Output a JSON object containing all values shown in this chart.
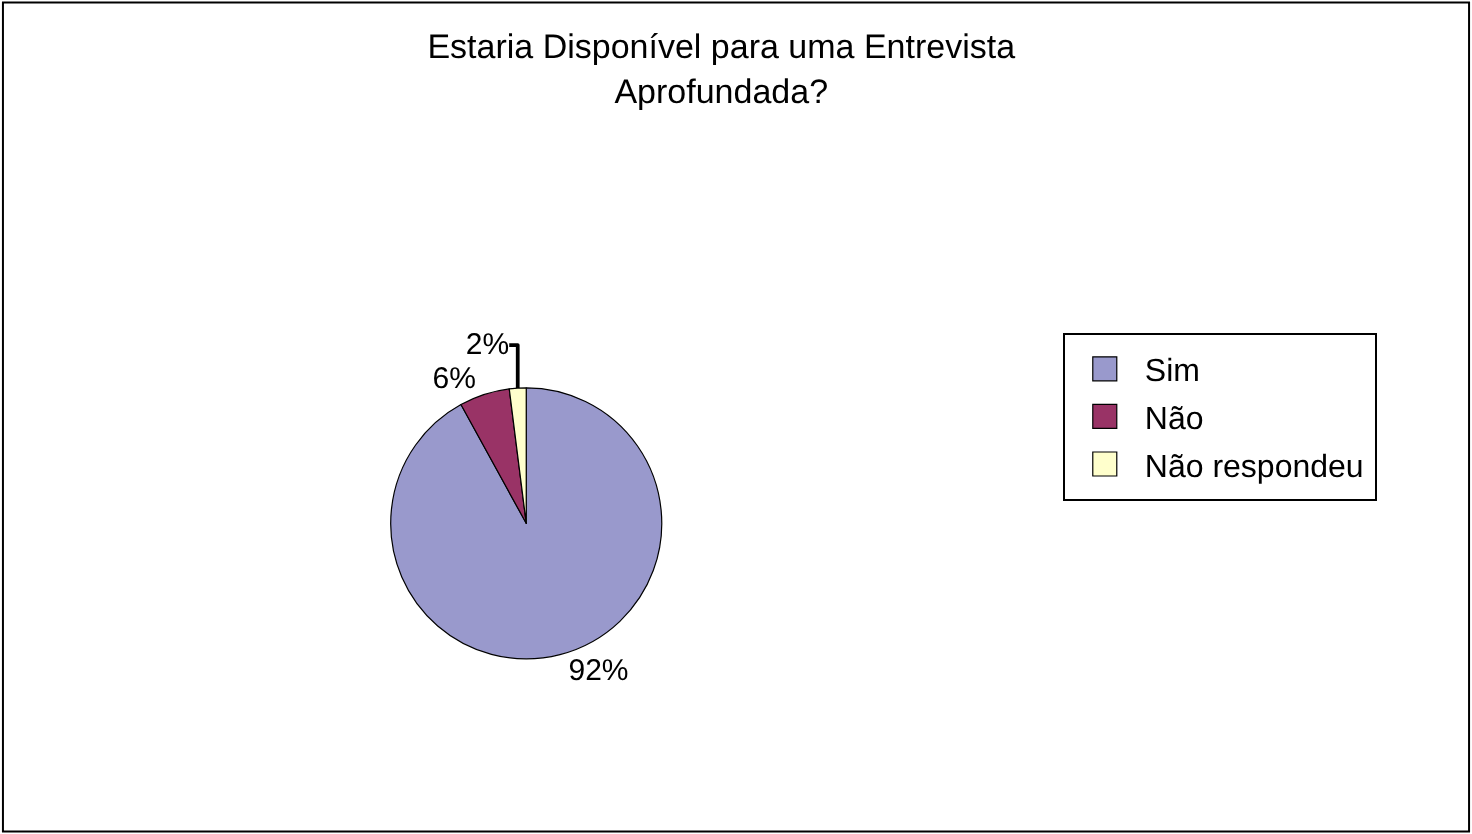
{
  "chart_data": {
    "type": "pie",
    "title": "Estaria Disponível para uma Entrevista\nAprofundada?",
    "categories": [
      "Sim",
      "Não",
      "Não respondeu"
    ],
    "values": [
      92,
      6,
      2
    ],
    "value_labels": [
      "92%",
      "6%",
      "2%"
    ],
    "colors": [
      "#9999cc",
      "#993366",
      "#ffffcc"
    ],
    "legend": "right"
  }
}
